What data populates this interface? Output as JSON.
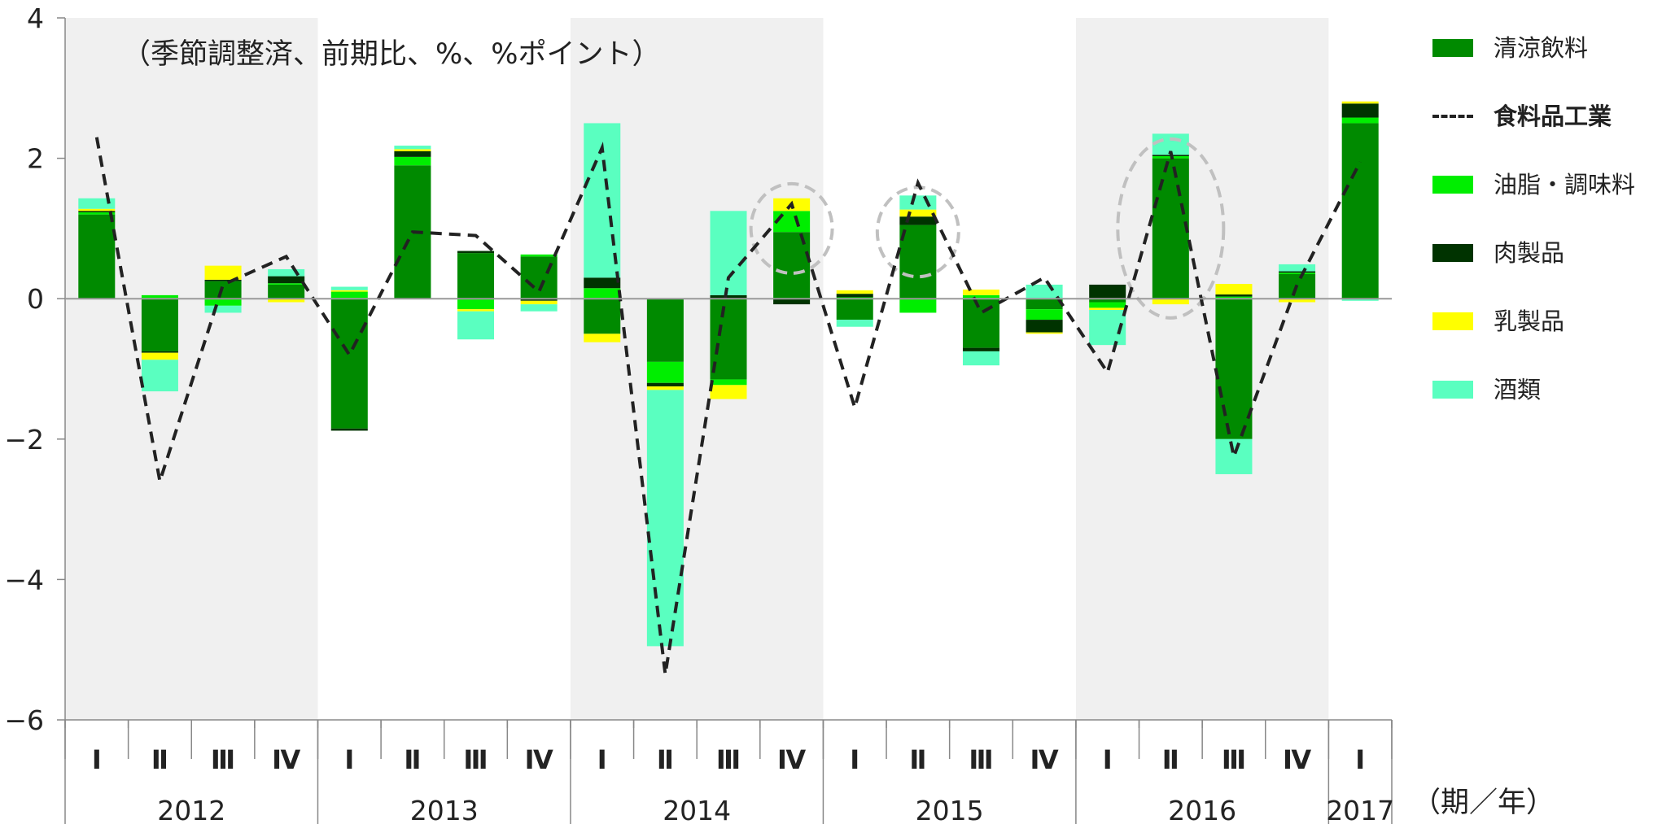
{
  "chart_data": {
    "type": "bar",
    "note": "（季節調整済、前期比、%、%ポイント）",
    "unit_label": "（期／年）",
    "ylim": [
      -6,
      4
    ],
    "yticks": [
      "−6",
      "−4",
      "−2",
      "0",
      "2",
      "4"
    ],
    "ytick_values": [
      -6,
      -4,
      -2,
      0,
      2,
      4
    ],
    "quarters": [
      "Ⅰ",
      "Ⅱ",
      "Ⅲ",
      "Ⅳ",
      "Ⅰ",
      "Ⅱ",
      "Ⅲ",
      "Ⅳ",
      "Ⅰ",
      "Ⅱ",
      "Ⅲ",
      "Ⅳ",
      "Ⅰ",
      "Ⅱ",
      "Ⅲ",
      "Ⅳ",
      "Ⅰ",
      "Ⅱ",
      "Ⅲ",
      "Ⅳ",
      "Ⅰ"
    ],
    "years": [
      {
        "label": "2012",
        "start": 0,
        "count": 4
      },
      {
        "label": "2013",
        "start": 4,
        "count": 4
      },
      {
        "label": "2014",
        "start": 8,
        "count": 4
      },
      {
        "label": "2015",
        "start": 12,
        "count": 4
      },
      {
        "label": "2016",
        "start": 16,
        "count": 4
      },
      {
        "label": "2017",
        "start": 20,
        "count": 1
      }
    ],
    "shaded_years": [
      0,
      2,
      4
    ],
    "series": [
      {
        "name": "清涼飲料",
        "color": "#008a00",
        "values": [
          1.2,
          -0.75,
          0.25,
          0.2,
          -1.85,
          1.9,
          0.65,
          0.6,
          -0.5,
          -0.9,
          -1.15,
          0.95,
          -0.3,
          1.05,
          -0.7,
          -0.15,
          -0.05,
          2.0,
          -2.0,
          0.35,
          2.5
        ]
      },
      {
        "name": "食料品工業",
        "color": "#222222",
        "style": "dashed",
        "values": [
          2.3,
          -2.6,
          0.2,
          0.6,
          -0.8,
          0.95,
          0.9,
          0.1,
          2.15,
          -5.35,
          0.3,
          1.35,
          -1.55,
          1.65,
          -0.2,
          0.3,
          -1.05,
          2.1,
          -2.25,
          0.2,
          1.95
        ]
      },
      {
        "name": "油脂・調味料",
        "color": "#00ee00",
        "values": [
          0.03,
          0.05,
          -0.1,
          0.02,
          0.1,
          0.12,
          -0.15,
          0.03,
          0.15,
          -0.3,
          -0.08,
          0.3,
          0.02,
          -0.2,
          0.05,
          -0.15,
          -0.08,
          0.03,
          0.03,
          0.02,
          0.08
        ]
      },
      {
        "name": "肉製品",
        "color": "#003300",
        "values": [
          0.02,
          -0.02,
          0.02,
          0.1,
          -0.03,
          0.08,
          0.03,
          -0.03,
          0.15,
          -0.05,
          0.05,
          -0.08,
          0.05,
          0.12,
          -0.05,
          -0.18,
          0.2,
          0.02,
          0.03,
          0.02,
          0.2
        ]
      },
      {
        "name": "乳製品",
        "color": "#ffff00",
        "values": [
          0.03,
          -0.1,
          0.2,
          -0.05,
          0.02,
          0.03,
          -0.03,
          -0.05,
          -0.12,
          -0.05,
          -0.2,
          0.18,
          0.05,
          0.1,
          0.08,
          -0.02,
          -0.03,
          -0.08,
          0.15,
          -0.05,
          0.03
        ]
      },
      {
        "name": "酒類",
        "color": "#5affc0",
        "values": [
          0.15,
          -0.45,
          -0.1,
          0.1,
          0.05,
          0.05,
          -0.4,
          -0.1,
          2.2,
          -3.65,
          1.2,
          0.0,
          -0.1,
          0.2,
          -0.2,
          0.2,
          -0.5,
          0.3,
          -0.5,
          0.1,
          -0.03
        ]
      }
    ],
    "highlight_circles": [
      11,
      13,
      17
    ]
  },
  "legend_order": [
    0,
    1,
    2,
    3,
    4,
    5
  ]
}
